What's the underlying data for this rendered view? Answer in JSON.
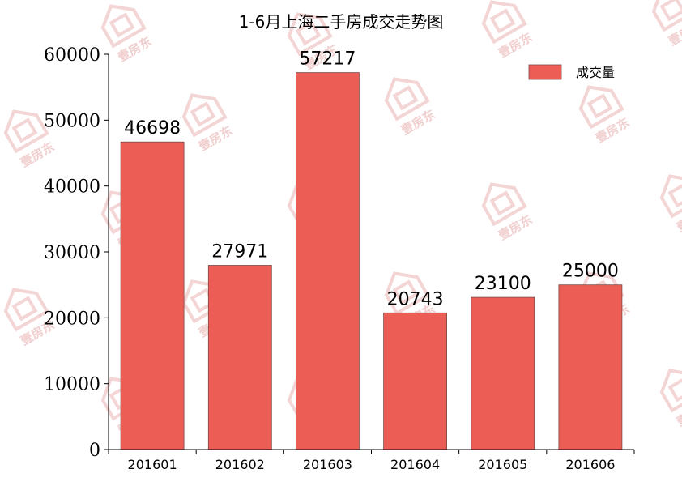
{
  "watermark": {
    "text": "壹房东"
  },
  "chart_data": {
    "type": "bar",
    "title": "1-6月上海二手房成交走势图",
    "categories": [
      "201601",
      "201602",
      "201603",
      "201604",
      "201605",
      "201606"
    ],
    "series": [
      {
        "name": "成交量",
        "values": [
          46698,
          27971,
          57217,
          20743,
          23100,
          25000
        ],
        "color": "#ec5e55"
      }
    ],
    "data_labels": [
      "46698",
      "27971",
      "57217",
      "20743",
      "23100",
      "25000"
    ],
    "yticks": [
      0,
      10000,
      20000,
      30000,
      40000,
      50000,
      60000
    ],
    "ytick_labels": [
      "0",
      "10000",
      "20000",
      "30000",
      "40000",
      "50000",
      "60000"
    ],
    "ylim": [
      0,
      60000
    ],
    "xlabel": "",
    "ylabel": "",
    "legend": {
      "position": "top-right"
    },
    "grid": false
  }
}
